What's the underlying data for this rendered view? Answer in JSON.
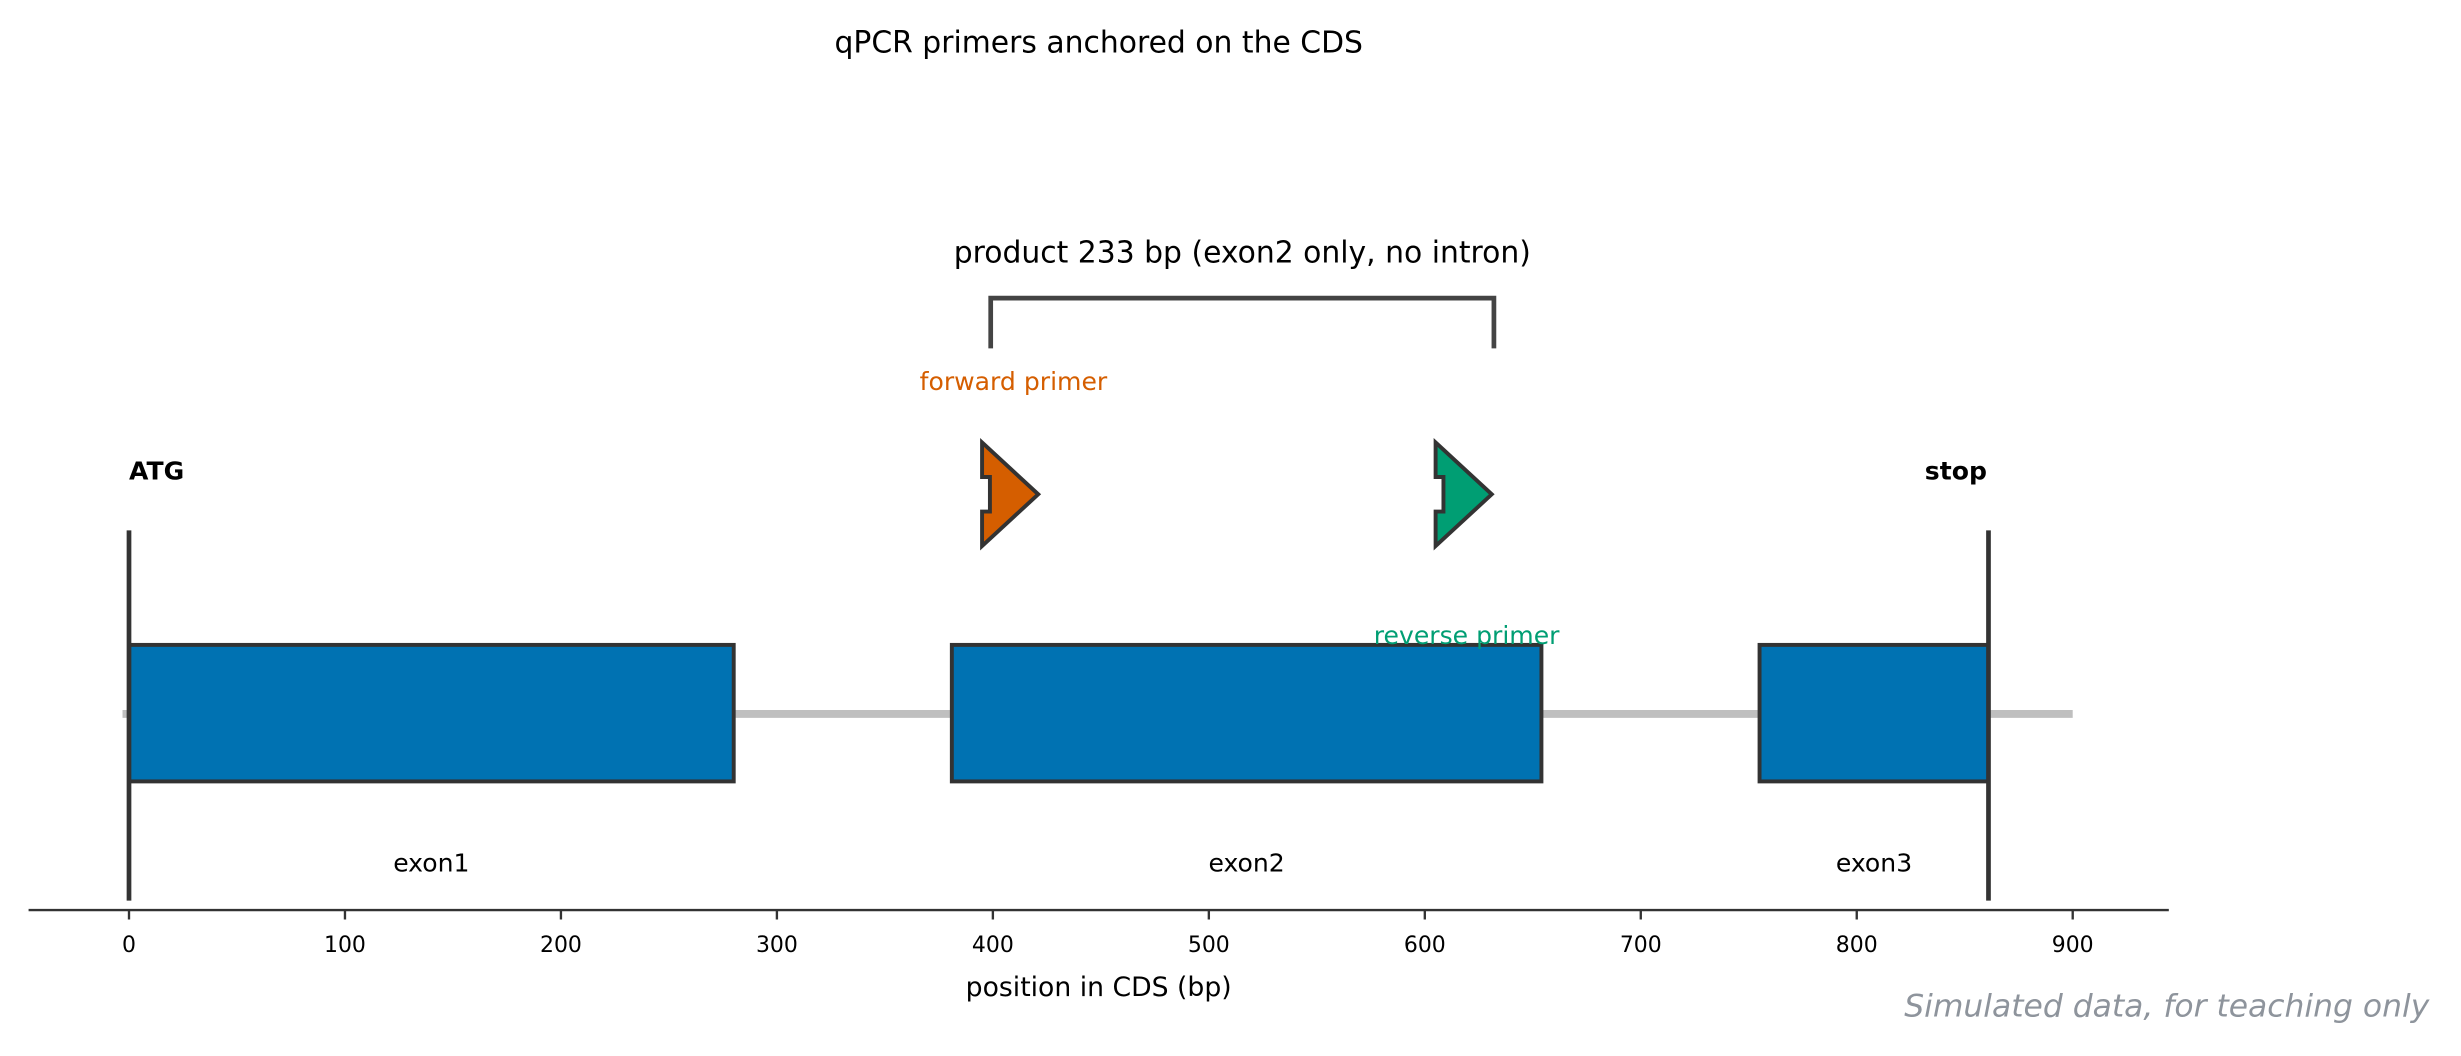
{
  "chart_data": {
    "type": "genemap",
    "title": "qPCR primers anchored on the CDS",
    "xlabel": "position in CDS (bp)",
    "xlim": [
      -46.5,
      944.5
    ],
    "xticks": [
      0,
      100,
      200,
      300,
      400,
      500,
      600,
      700,
      800,
      900
    ],
    "backbone": [
      -3,
      900
    ],
    "exons": [
      {
        "name": "exon1",
        "start": 0,
        "end": 280
      },
      {
        "name": "exon2",
        "start": 381,
        "end": 654
      },
      {
        "name": "exon3",
        "start": 755,
        "end": 861
      }
    ],
    "exon_color": "#0072b2",
    "markers": [
      {
        "label": "ATG",
        "position": 0
      },
      {
        "label": "stop",
        "position": 861
      }
    ],
    "primers": [
      {
        "name": "forward primer",
        "start": 395,
        "end": 421,
        "color": "#d55e00"
      },
      {
        "name": "reverse primer",
        "start": 605,
        "end": 631,
        "color": "#009e73"
      }
    ],
    "product": {
      "label": "product 233 bp (exon2 only, no intron)",
      "start": 399,
      "end": 632
    }
  },
  "footnote": "Simulated data, for teaching only"
}
